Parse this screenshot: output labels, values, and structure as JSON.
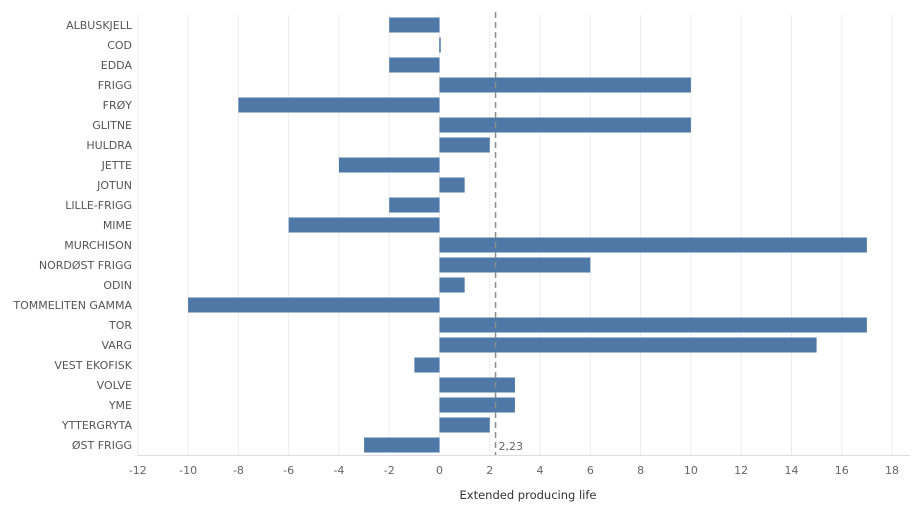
{
  "chart_data": {
    "type": "bar",
    "orientation": "horizontal",
    "categories": [
      "ALBUSKJELL",
      "COD",
      "EDDA",
      "FRIGG",
      "FRØY",
      "GLITNE",
      "HULDRA",
      "JETTE",
      "JOTUN",
      "LILLE-FRIGG",
      "MIME",
      "MURCHISON",
      "NORDØST FRIGG",
      "ODIN",
      "TOMMELITEN GAMMA",
      "TOR",
      "VARG",
      "VEST EKOFISK",
      "VOLVE",
      "YME",
      "YTTERGRYTA",
      "ØST FRIGG"
    ],
    "values": [
      -2,
      0,
      -2,
      10,
      -8,
      10,
      2,
      -4,
      1,
      -2,
      -6,
      17,
      6,
      1,
      -10,
      17,
      15,
      -1,
      3,
      3,
      2,
      -3
    ],
    "xlabel": "Extended producing life",
    "ylabel": "",
    "xlim": [
      -12,
      18
    ],
    "xticks": [
      -12,
      -10,
      -8,
      -6,
      -4,
      -2,
      0,
      2,
      4,
      6,
      8,
      10,
      12,
      14,
      16,
      18
    ],
    "reference_line": {
      "value": 2.23,
      "label": "2,23"
    },
    "grid": true,
    "bar_color": "#4e79a7"
  }
}
